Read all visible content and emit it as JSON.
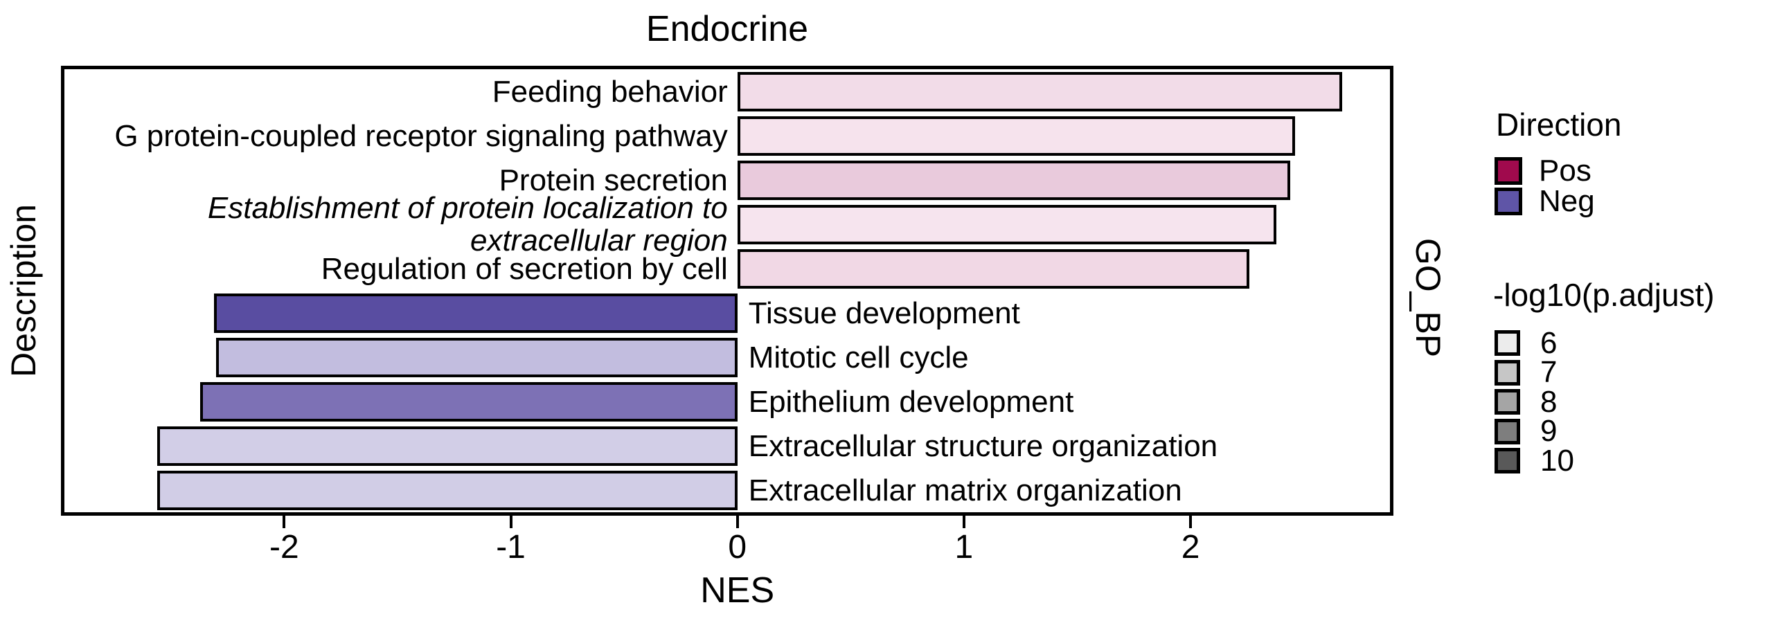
{
  "title": "Endocrine",
  "axes": {
    "x_label": "NES",
    "y_label_left": "Description",
    "y_label_right": "GO_BP"
  },
  "chart_data": {
    "type": "bar",
    "orientation": "horizontal",
    "title": "Endocrine",
    "xlabel": "NES",
    "ylabel": "Description",
    "facet_label": "GO_BP",
    "xlim": [
      -2.97,
      2.88
    ],
    "xticks": [
      -2,
      -1,
      0,
      1,
      2
    ],
    "grid": false,
    "bar_outline_color": "#000000",
    "bars": [
      {
        "label": "Feeding behavior",
        "nes": 2.67,
        "direction": "Pos",
        "fill": "#F2DCE8",
        "italic": false
      },
      {
        "label": "G protein-coupled receptor signaling pathway",
        "nes": 2.46,
        "direction": "Pos",
        "fill": "#F6E3ED",
        "italic": false
      },
      {
        "label": "Protein secretion",
        "nes": 2.44,
        "direction": "Pos",
        "fill": "#E9CADC",
        "italic": false
      },
      {
        "label": "Establishment of protein localization to extracellular region",
        "label_lines": [
          "Establishment of protein localization to",
          "extracellular region"
        ],
        "nes": 2.38,
        "direction": "Pos",
        "fill": "#F6E4EE",
        "italic": true
      },
      {
        "label": "Regulation of secretion by cell",
        "nes": 2.26,
        "direction": "Pos",
        "fill": "#F1D8E5",
        "italic": false
      },
      {
        "label": "Tissue development",
        "nes": -2.31,
        "direction": "Neg",
        "fill": "#594DA1",
        "italic": false
      },
      {
        "label": "Mitotic cell cycle",
        "nes": -2.3,
        "direction": "Neg",
        "fill": "#C2BDDF",
        "italic": false
      },
      {
        "label": "Epithelium development",
        "nes": -2.37,
        "direction": "Neg",
        "fill": "#7D71B5",
        "italic": false
      },
      {
        "label": "Extracellular structure organization",
        "nes": -2.56,
        "direction": "Neg",
        "fill": "#D2CEE7",
        "italic": false
      },
      {
        "label": "Extracellular matrix organization",
        "nes": -2.56,
        "direction": "Neg",
        "fill": "#D1CDE6",
        "italic": false
      }
    ],
    "legend_position": "right"
  },
  "legends": {
    "direction": {
      "title": "Direction",
      "items": [
        {
          "label": "Pos",
          "color": "#A00A4D"
        },
        {
          "label": "Neg",
          "color": "#5F55A7"
        }
      ]
    },
    "significance": {
      "title": "-log10(p.adjust)",
      "items": [
        {
          "label": "6",
          "color": "#ECECEC"
        },
        {
          "label": "7",
          "color": "#C6C6C6"
        },
        {
          "label": "8",
          "color": "#A5A5A5"
        },
        {
          "label": "9",
          "color": "#7E7E7E"
        },
        {
          "label": "10",
          "color": "#595959"
        }
      ]
    }
  }
}
